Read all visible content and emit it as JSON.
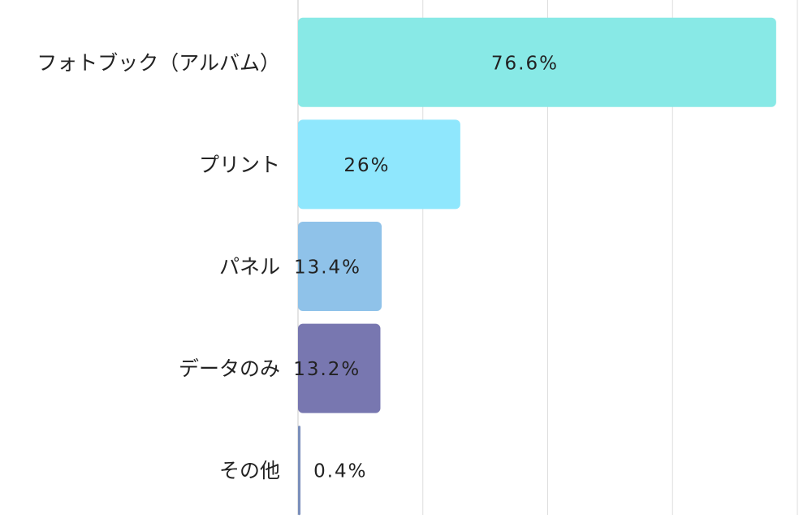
{
  "chart_data": {
    "type": "hbar",
    "categories": [
      "フォトブック（アルバム）",
      "プリント",
      "パネル",
      "データのみ",
      "その他"
    ],
    "values": [
      76.6,
      26,
      13.4,
      13.2,
      0.4
    ],
    "value_labels": [
      "76.6%",
      "26%",
      "13.4%",
      "13.2%",
      "0.4%"
    ],
    "colors": [
      "#88e9e6",
      "#8fe7fd",
      "#8fc2e9",
      "#7877b0",
      "#7b8fbb"
    ],
    "xlim": [
      0,
      80
    ],
    "xticks": [
      0,
      20,
      40,
      60,
      80
    ],
    "grid": true
  }
}
